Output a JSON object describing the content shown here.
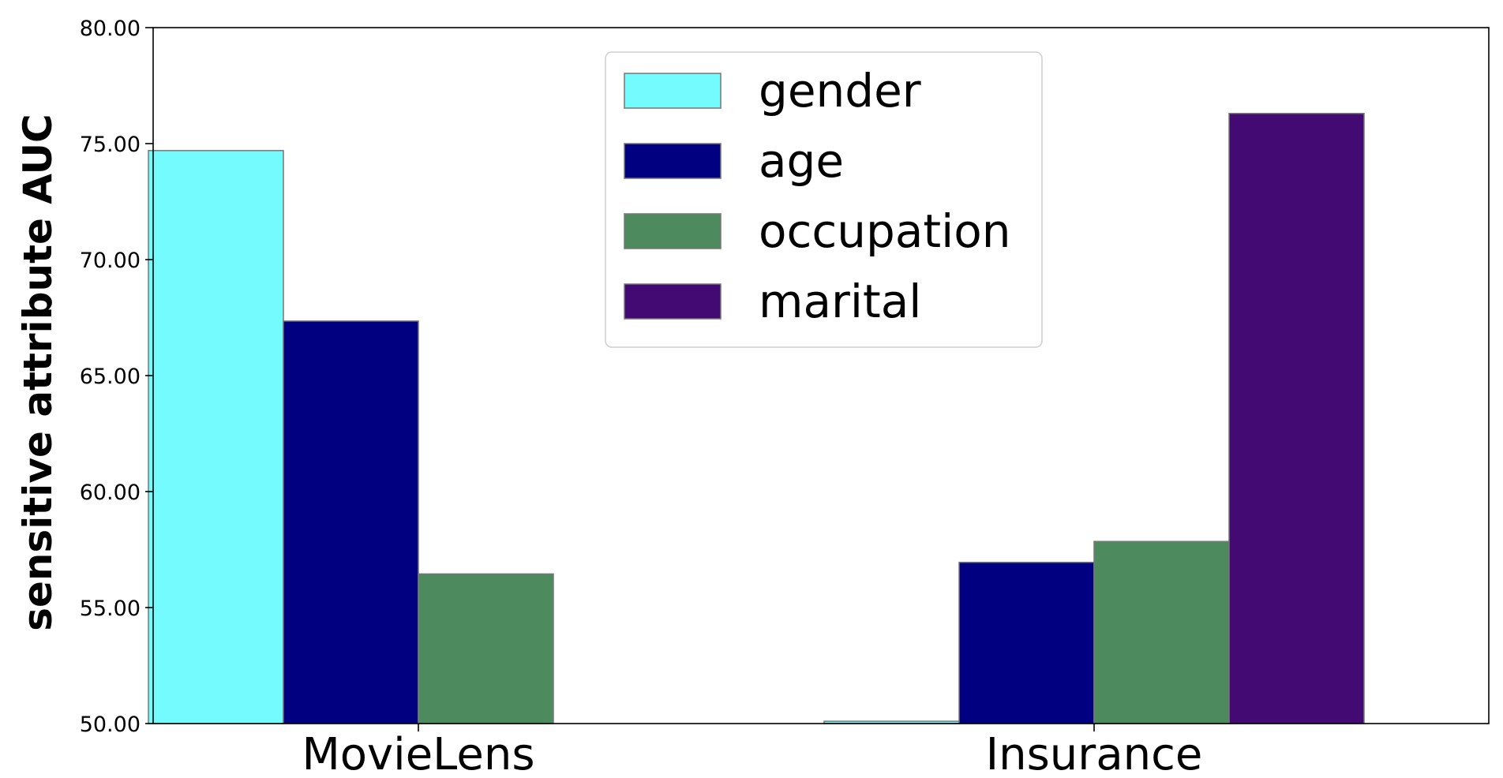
{
  "chart_data": {
    "type": "bar",
    "categories": [
      "MovieLens",
      "Insurance"
    ],
    "series": [
      {
        "name": "gender",
        "color": "#74fbfd",
        "values": [
          74.7,
          50.1
        ]
      },
      {
        "name": "age",
        "color": "#000080",
        "values": [
          67.35,
          56.95
        ]
      },
      {
        "name": "occupation",
        "color": "#4d8b5e",
        "values": [
          56.45,
          57.85
        ]
      },
      {
        "name": "marital",
        "color": "#430a73",
        "values": [
          null,
          76.3
        ]
      }
    ],
    "ylabel": "sensitive attribute AUC",
    "xlabel": "",
    "ylim": [
      50,
      80
    ],
    "yticks": [
      "50.00",
      "55.00",
      "60.00",
      "65.00",
      "70.00",
      "75.00",
      "80.00"
    ],
    "grid": false,
    "legend_position": "upper center"
  }
}
